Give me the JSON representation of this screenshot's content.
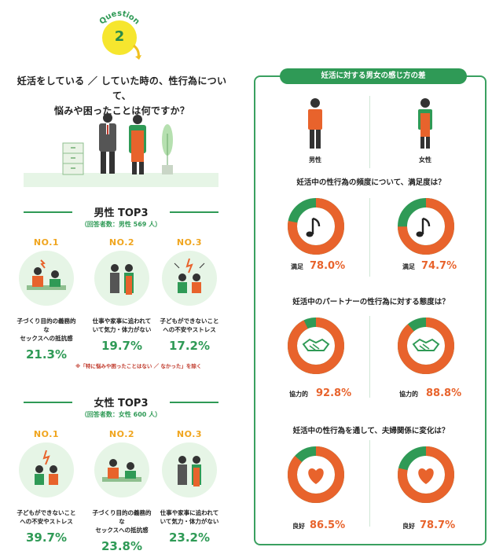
{
  "badge": {
    "word": "Question",
    "number": "2"
  },
  "question": {
    "line1": "妊活をしている ／ していた時の、性行為について、",
    "line2": "悩みや困ったことは何ですか？"
  },
  "male": {
    "title": "男性 TOP3",
    "respondents": "（回答者数：男性 569 人）",
    "ranks": [
      {
        "no": "NO.1",
        "text1": "子づくり目的の義務的な",
        "text2": "セックスへの抵抗感",
        "pct": "21.3%"
      },
      {
        "no": "NO.2",
        "text1": "仕事や家事に追われて",
        "text2": "いて気力・体力がない",
        "pct": "19.7%"
      },
      {
        "no": "NO.3",
        "text1": "子どもができないこと",
        "text2": "への不安やストレス",
        "pct": "17.2%"
      }
    ]
  },
  "note": "※「特に悩みや困ったことはない ／ なかった」を除く",
  "female": {
    "title": "女性 TOP3",
    "respondents": "（回答者数：女性 600 人）",
    "ranks": [
      {
        "no": "NO.1",
        "text1": "子どもができないこと",
        "text2": "への不安やストレス",
        "pct": "39.7%"
      },
      {
        "no": "NO.2",
        "text1": "子づくり目的の義務的な",
        "text2": "セックスへの抵抗感",
        "pct": "23.8%"
      },
      {
        "no": "NO.3",
        "text1": "仕事や家事に追われて",
        "text2": "いて気力・体力がない",
        "pct": "23.2%"
      }
    ]
  },
  "panel": {
    "title": "妊活に対する男女の感じ方の差",
    "male_label": "男性",
    "female_label": "女性",
    "questions": [
      {
        "q": "妊活中の性行為の頻度について、満足度は？",
        "icon": "music-note-icon",
        "male": {
          "label": "満足",
          "pct": "78.0%",
          "value": 0.78
        },
        "female": {
          "label": "満足",
          "pct": "74.7%",
          "value": 0.747
        }
      },
      {
        "q": "妊活中のパートナーの性行為に対する態度は？",
        "icon": "handshake-icon",
        "male": {
          "label": "協力的",
          "pct": "92.8%",
          "value": 0.928
        },
        "female": {
          "label": "協力的",
          "pct": "88.8%",
          "value": 0.888
        }
      },
      {
        "q": "妊活中の性行為を通して、夫婦関係に変化は？",
        "icon": "heart-icon",
        "male": {
          "label": "良好",
          "pct": "86.5%",
          "value": 0.865
        },
        "female": {
          "label": "良好",
          "pct": "78.7%",
          "value": 0.787
        }
      }
    ]
  },
  "colors": {
    "green": "#2f9a56",
    "orange": "#e8632c",
    "yellow": "#f0a51e",
    "light_green": "#e6f5e6"
  }
}
